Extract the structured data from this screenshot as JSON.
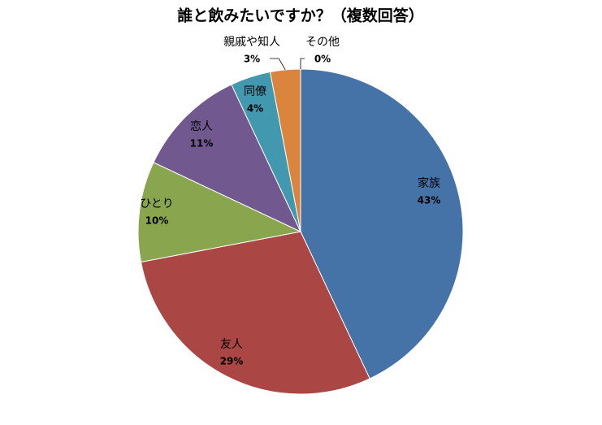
{
  "chart_data": {
    "type": "pie",
    "title": "誰と飲みたいですか？（複数回答）",
    "categories": [
      "家族",
      "友人",
      "ひとり",
      "恋人",
      "同僚",
      "親戚や知人",
      "その他"
    ],
    "values": [
      43,
      29,
      10,
      11,
      4,
      3,
      0
    ],
    "value_labels": [
      "43%",
      "29%",
      "10%",
      "11%",
      "4%",
      "3%",
      "0%"
    ],
    "colors": [
      "#4572a7",
      "#aa4643",
      "#89a54e",
      "#71588f",
      "#4198af",
      "#db843d",
      "#93a9cf"
    ]
  }
}
